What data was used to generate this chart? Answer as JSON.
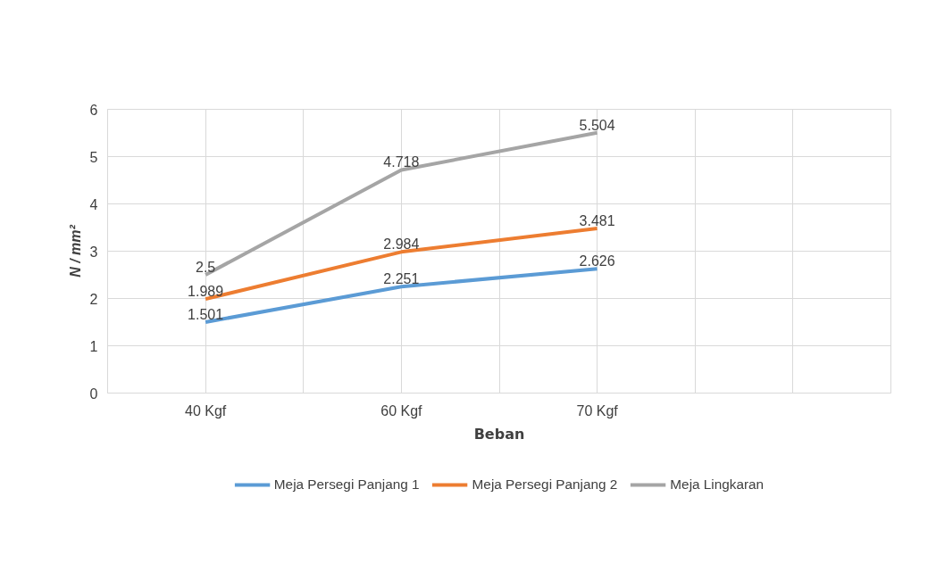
{
  "chart_data": {
    "type": "line",
    "xlabel": "Beban",
    "ylabel": "N / mm²",
    "categories": [
      "40 Kgf",
      "60 Kgf",
      "70 Kgf",
      null
    ],
    "ylim": [
      0,
      6
    ],
    "yticks": [
      0,
      1,
      2,
      3,
      4,
      5,
      6
    ],
    "grid": true,
    "legend": "bottom",
    "data_labels": true,
    "series": [
      {
        "name": "Meja Persegi Panjang 1",
        "color": "#5b9bd5",
        "values": [
          1.501,
          2.251,
          2.626,
          null
        ]
      },
      {
        "name": "Meja Persegi Panjang 2",
        "color": "#ed7d31",
        "values": [
          1.989,
          2.984,
          3.481,
          null
        ]
      },
      {
        "name": "Meja Lingkaran",
        "color": "#a5a5a5",
        "values": [
          2.5,
          4.718,
          5.504,
          null
        ]
      }
    ]
  }
}
